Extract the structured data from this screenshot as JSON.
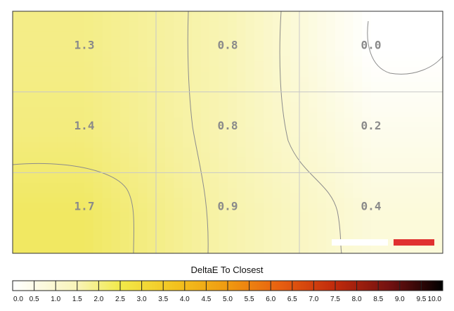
{
  "chart_data": {
    "type": "heatmap",
    "title": "",
    "rows": 3,
    "cols": 3,
    "values": [
      [
        1.3,
        0.8,
        0.0
      ],
      [
        1.4,
        0.8,
        0.2
      ],
      [
        1.7,
        0.9,
        0.4
      ]
    ],
    "value_labels": [
      [
        "1.3",
        "0.8",
        "0.0"
      ],
      [
        "1.4",
        "0.8",
        "0.2"
      ],
      [
        "1.7",
        "0.9",
        "0.4"
      ]
    ],
    "contours": true,
    "grid": true,
    "colorbar": {
      "title": "DeltaE To Closest",
      "min": 0.0,
      "max": 10.0,
      "step": 0.5,
      "tick_labels": [
        "0.0",
        "0.5",
        "1.0",
        "1.5",
        "2.0",
        "2.5",
        "3.0",
        "3.5",
        "4.0",
        "4.5",
        "5.0",
        "5.5",
        "6.0",
        "6.5",
        "7.0",
        "7.5",
        "8.0",
        "8.5",
        "9.0",
        "9.5",
        "10.0"
      ]
    },
    "marker_color": "#e03030"
  }
}
